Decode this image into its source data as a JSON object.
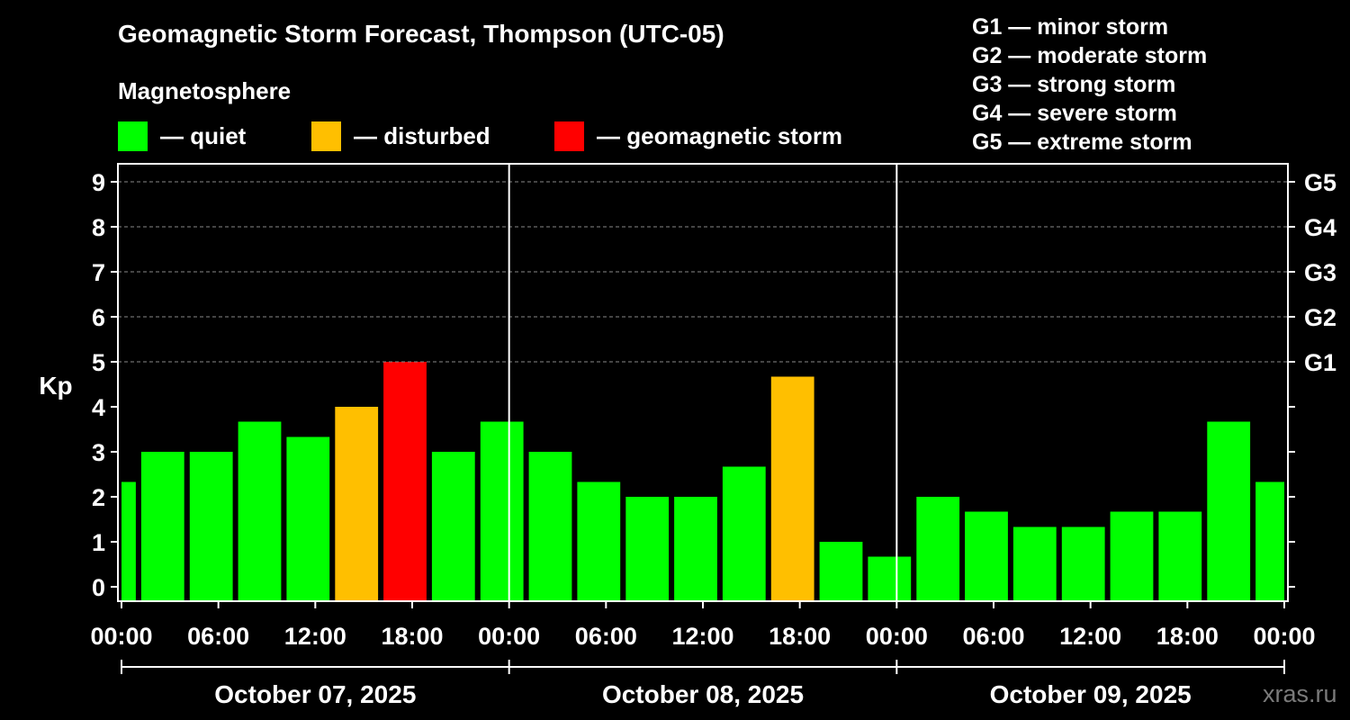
{
  "title": "Geomagnetic Storm Forecast, Thompson (UTC-05)",
  "magnetosphere_label": "Magnetosphere",
  "legend": [
    {
      "label": "— quiet",
      "color": "#00ff00"
    },
    {
      "label": "— disturbed",
      "color": "#ffbf00"
    },
    {
      "label": "— geomagnetic storm",
      "color": "#ff0000"
    }
  ],
  "storm_scale": [
    "G1 — minor storm",
    "G2 — moderate storm",
    "G3 — strong storm",
    "G4 — severe storm",
    "G5 — extreme storm"
  ],
  "watermark": "xras.ru",
  "chart_data": {
    "type": "bar",
    "title": "Geomagnetic Storm Forecast, Thompson (UTC-05)",
    "ylabel": "Kp",
    "ylim": [
      0,
      9
    ],
    "y_ticks": [
      "0",
      "1",
      "2",
      "3",
      "4",
      "5",
      "6",
      "7",
      "8",
      "9"
    ],
    "right_ticks": [
      {
        "kp": 5,
        "label": "G1"
      },
      {
        "kp": 6,
        "label": "G2"
      },
      {
        "kp": 7,
        "label": "G3"
      },
      {
        "kp": 8,
        "label": "G4"
      },
      {
        "kp": 9,
        "label": "G5"
      }
    ],
    "grid": "dashed horizontal at Kp 5-9",
    "x_unit": "hours",
    "x_range": [
      0,
      72
    ],
    "x_ticks": [
      {
        "h": 0,
        "label": "00:00"
      },
      {
        "h": 6,
        "label": "06:00"
      },
      {
        "h": 12,
        "label": "12:00"
      },
      {
        "h": 18,
        "label": "18:00"
      },
      {
        "h": 24,
        "label": "00:00"
      },
      {
        "h": 30,
        "label": "06:00"
      },
      {
        "h": 36,
        "label": "12:00"
      },
      {
        "h": 42,
        "label": "18:00"
      },
      {
        "h": 48,
        "label": "00:00"
      },
      {
        "h": 54,
        "label": "06:00"
      },
      {
        "h": 60,
        "label": "12:00"
      },
      {
        "h": 66,
        "label": "18:00"
      },
      {
        "h": 72,
        "label": "00:00"
      }
    ],
    "days": [
      {
        "label": "October 07, 2025",
        "start_h": 0,
        "end_h": 24
      },
      {
        "label": "October 08, 2025",
        "start_h": 24,
        "end_h": 48
      },
      {
        "label": "October 09, 2025",
        "start_h": 48,
        "end_h": 72
      }
    ],
    "series": [
      {
        "name": "Kp",
        "bars": [
          {
            "start_h": 0,
            "end_h": 1,
            "kp": 2.33,
            "level": "quiet"
          },
          {
            "start_h": 1,
            "end_h": 4,
            "kp": 3.0,
            "level": "quiet"
          },
          {
            "start_h": 4,
            "end_h": 7,
            "kp": 3.0,
            "level": "quiet"
          },
          {
            "start_h": 7,
            "end_h": 10,
            "kp": 3.67,
            "level": "quiet"
          },
          {
            "start_h": 10,
            "end_h": 13,
            "kp": 3.33,
            "level": "quiet"
          },
          {
            "start_h": 13,
            "end_h": 16,
            "kp": 4.0,
            "level": "disturbed"
          },
          {
            "start_h": 16,
            "end_h": 19,
            "kp": 5.0,
            "level": "storm"
          },
          {
            "start_h": 19,
            "end_h": 22,
            "kp": 3.0,
            "level": "quiet"
          },
          {
            "start_h": 22,
            "end_h": 25,
            "kp": 3.67,
            "level": "quiet"
          },
          {
            "start_h": 25,
            "end_h": 28,
            "kp": 3.0,
            "level": "quiet"
          },
          {
            "start_h": 28,
            "end_h": 31,
            "kp": 2.33,
            "level": "quiet"
          },
          {
            "start_h": 31,
            "end_h": 34,
            "kp": 2.0,
            "level": "quiet"
          },
          {
            "start_h": 34,
            "end_h": 37,
            "kp": 2.0,
            "level": "quiet"
          },
          {
            "start_h": 37,
            "end_h": 40,
            "kp": 2.67,
            "level": "quiet"
          },
          {
            "start_h": 40,
            "end_h": 43,
            "kp": 4.67,
            "level": "disturbed"
          },
          {
            "start_h": 43,
            "end_h": 46,
            "kp": 1.0,
            "level": "quiet"
          },
          {
            "start_h": 46,
            "end_h": 49,
            "kp": 0.67,
            "level": "quiet"
          },
          {
            "start_h": 49,
            "end_h": 52,
            "kp": 2.0,
            "level": "quiet"
          },
          {
            "start_h": 52,
            "end_h": 55,
            "kp": 1.67,
            "level": "quiet"
          },
          {
            "start_h": 55,
            "end_h": 58,
            "kp": 1.33,
            "level": "quiet"
          },
          {
            "start_h": 58,
            "end_h": 61,
            "kp": 1.33,
            "level": "quiet"
          },
          {
            "start_h": 61,
            "end_h": 64,
            "kp": 1.67,
            "level": "quiet"
          },
          {
            "start_h": 64,
            "end_h": 67,
            "kp": 1.67,
            "level": "quiet"
          },
          {
            "start_h": 67,
            "end_h": 70,
            "kp": 3.67,
            "level": "quiet"
          },
          {
            "start_h": 70,
            "end_h": 72,
            "kp": 2.33,
            "level": "quiet"
          }
        ]
      }
    ],
    "level_colors": {
      "quiet": "#00ff00",
      "disturbed": "#ffbf00",
      "storm": "#ff0000"
    }
  }
}
